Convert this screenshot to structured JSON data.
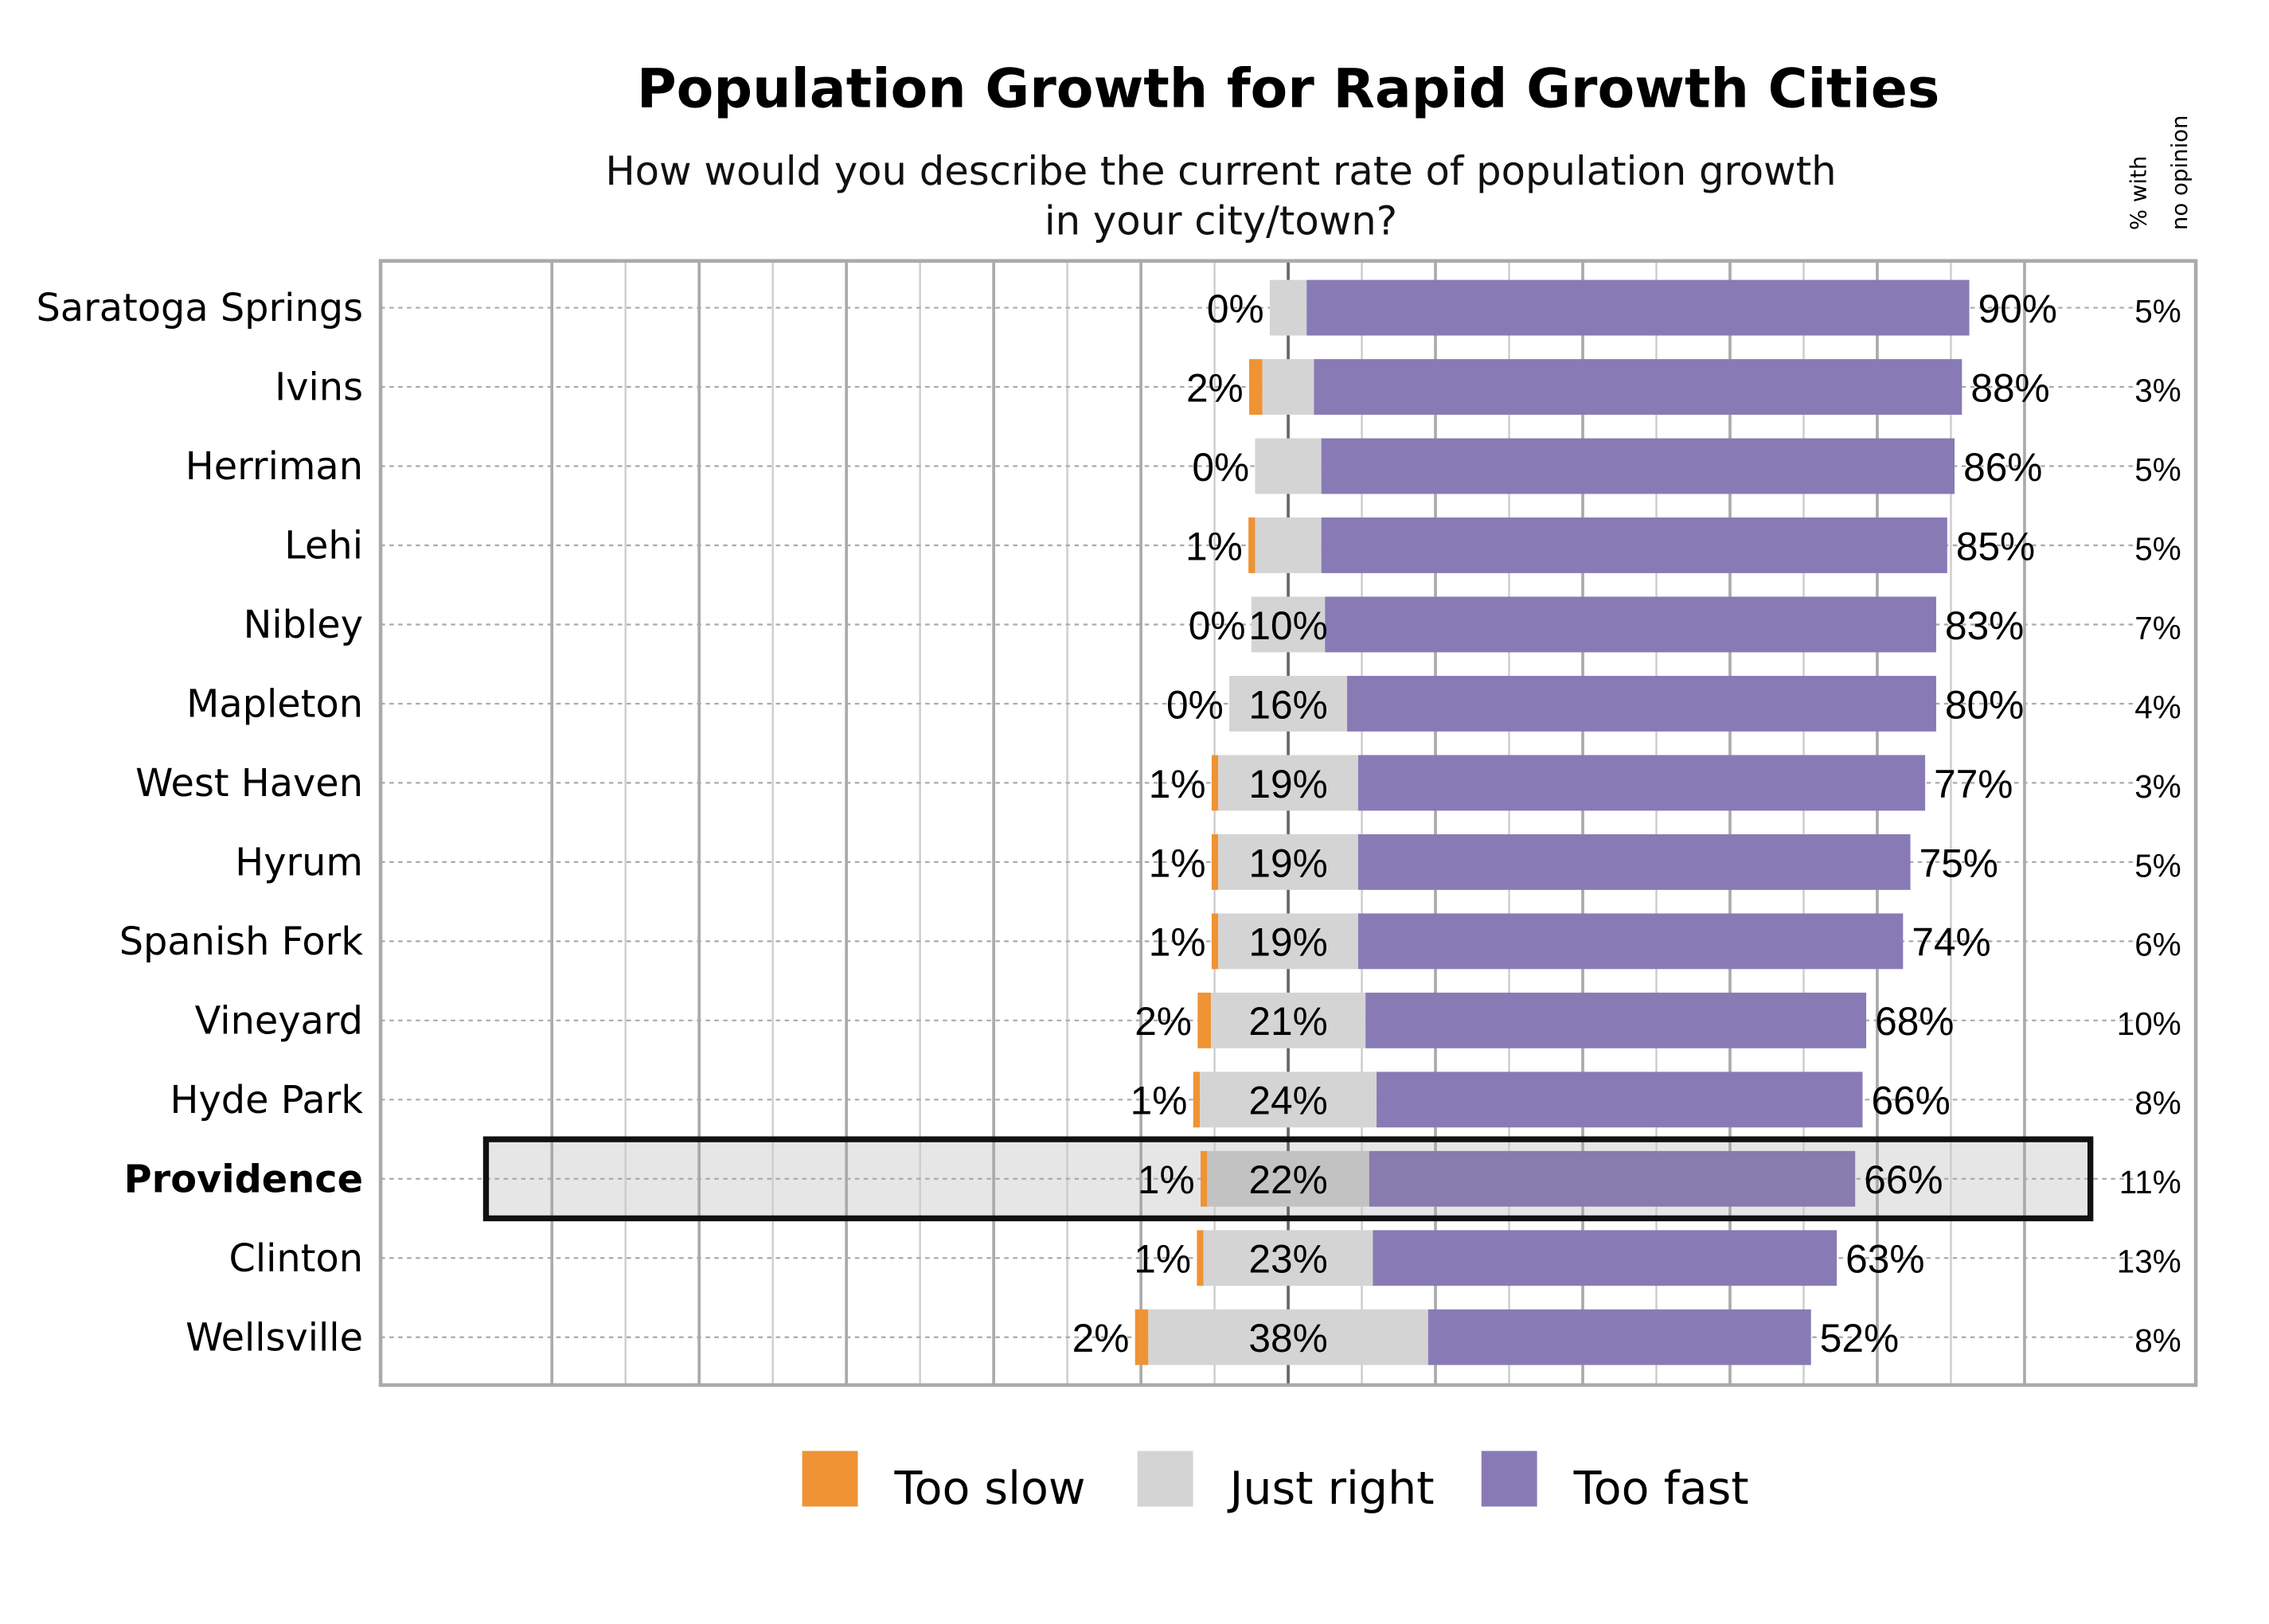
{
  "chart_data": {
    "type": "bar",
    "subtype": "diverging-stacked-horizontal",
    "title": "Population Growth for Rapid Growth Cities",
    "subtitle_line1": "How would you describe the current rate of population growth",
    "subtitle_line2": "in your city/town?",
    "no_opinion_header_line1": "% with",
    "no_opinion_header_line2": "no opinion",
    "xlim": [
      -123,
      123
    ],
    "grid": true,
    "legend_placement": "bottom",
    "highlight": "Providence",
    "categories": [
      "Saratoga Springs",
      "Ivins",
      "Herriman",
      "Lehi",
      "Nibley",
      "Mapleton",
      "West Haven",
      "Hyrum",
      "Spanish Fork",
      "Vineyard",
      "Hyde Park",
      "Providence",
      "Clinton",
      "Wellsville"
    ],
    "series": [
      {
        "name": "Too slow",
        "color": "#ef9334",
        "values": [
          0,
          2,
          0,
          1,
          0,
          0,
          1,
          1,
          1,
          2,
          1,
          1,
          1,
          2
        ],
        "labels": [
          "0%",
          "2%",
          "0%",
          "1%",
          "0%",
          "0%",
          "1%",
          "1%",
          "1%",
          "2%",
          "1%",
          "1%",
          "1%",
          "2%"
        ]
      },
      {
        "name": "Just right",
        "color": "#d4d4d4",
        "values": [
          5,
          7,
          9,
          9,
          10,
          16,
          19,
          19,
          19,
          21,
          24,
          22,
          23,
          38
        ],
        "labels": [
          "",
          "",
          "",
          "",
          "10%",
          "16%",
          "19%",
          "19%",
          "19%",
          "21%",
          "24%",
          "22%",
          "23%",
          "38%"
        ]
      },
      {
        "name": "Too fast",
        "color": "#887bb5",
        "values": [
          90,
          88,
          86,
          85,
          83,
          80,
          77,
          75,
          74,
          68,
          66,
          66,
          63,
          52
        ],
        "labels": [
          "90%",
          "88%",
          "86%",
          "85%",
          "83%",
          "80%",
          "77%",
          "75%",
          "74%",
          "68%",
          "66%",
          "66%",
          "63%",
          "52%"
        ]
      }
    ],
    "no_opinion": [
      "5%",
      "3%",
      "5%",
      "5%",
      "7%",
      "4%",
      "3%",
      "5%",
      "6%",
      "10%",
      "8%",
      "11%",
      "13%",
      "8%"
    ]
  }
}
